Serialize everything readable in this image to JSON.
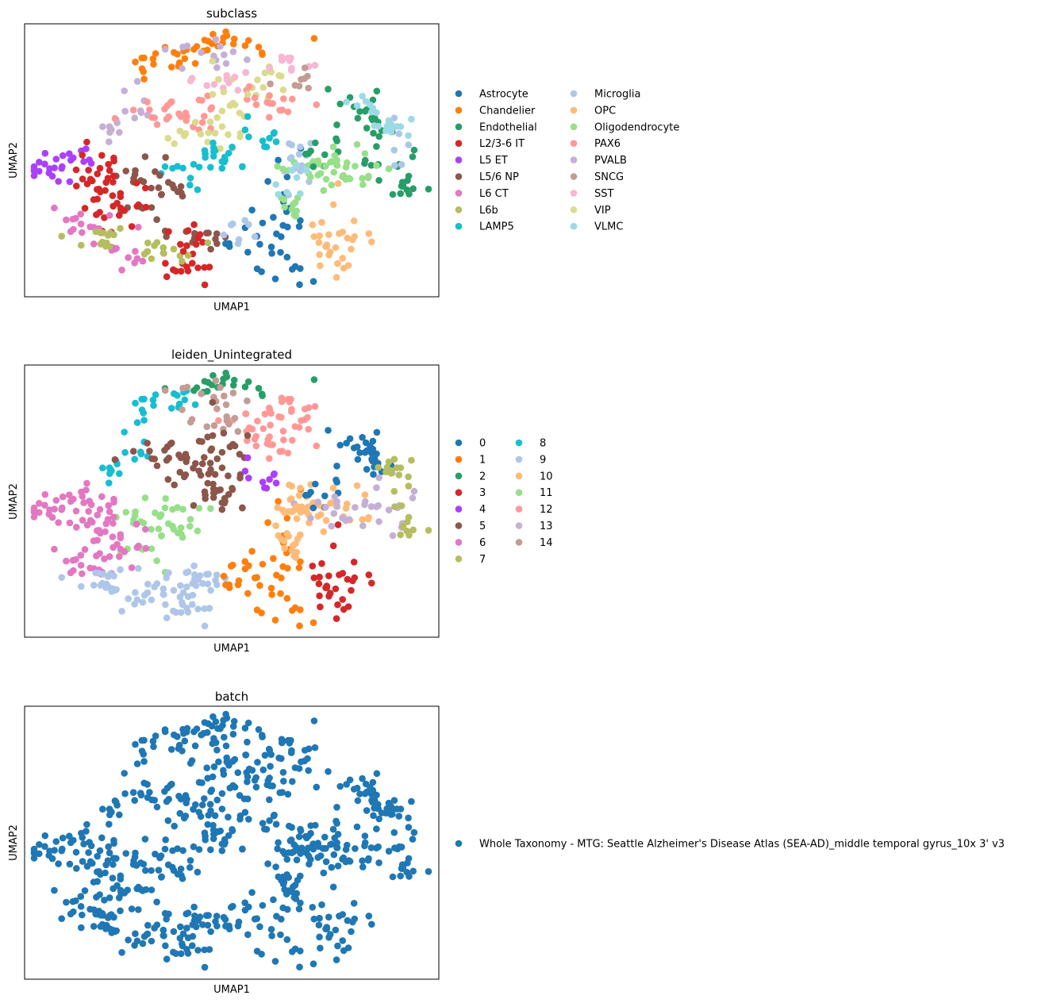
{
  "chart_data": [
    {
      "type": "scatter",
      "title": "subclass",
      "xlabel": "UMAP1",
      "ylabel": "UMAP2",
      "xticks": false,
      "yticks": false,
      "legend_placement": "right, two columns",
      "legend": [
        {
          "label": "Astrocyte",
          "color": "#1f77b4"
        },
        {
          "label": "Chandelier",
          "color": "#ff7f0e"
        },
        {
          "label": "Endothelial",
          "color": "#279e68"
        },
        {
          "label": "L2/3-6 IT",
          "color": "#d62728"
        },
        {
          "label": "L5 ET",
          "color": "#aa40fc"
        },
        {
          "label": "L5/6 NP",
          "color": "#8c564b"
        },
        {
          "label": "L6 CT",
          "color": "#e377c2"
        },
        {
          "label": "L6b",
          "color": "#b5bd61"
        },
        {
          "label": "LAMP5",
          "color": "#17becf"
        },
        {
          "label": "Microglia",
          "color": "#aec7e8"
        },
        {
          "label": "OPC",
          "color": "#ffbb78"
        },
        {
          "label": "Oligodendrocyte",
          "color": "#98df8a"
        },
        {
          "label": "PAX6",
          "color": "#ff9896"
        },
        {
          "label": "PVALB",
          "color": "#c5b0d5"
        },
        {
          "label": "SNCG",
          "color": "#c49c94"
        },
        {
          "label": "SST",
          "color": "#f7b6d2"
        },
        {
          "label": "VIP",
          "color": "#dbdb8d"
        },
        {
          "label": "VLMC",
          "color": "#9edae5"
        }
      ]
    },
    {
      "type": "scatter",
      "title": "leiden_Unintegrated",
      "xlabel": "UMAP1",
      "ylabel": "UMAP2",
      "xticks": false,
      "yticks": false,
      "legend_placement": "right, two columns",
      "legend": [
        {
          "label": "0",
          "color": "#1f77b4"
        },
        {
          "label": "1",
          "color": "#ff7f0e"
        },
        {
          "label": "2",
          "color": "#279e68"
        },
        {
          "label": "3",
          "color": "#d62728"
        },
        {
          "label": "4",
          "color": "#aa40fc"
        },
        {
          "label": "5",
          "color": "#8c564b"
        },
        {
          "label": "6",
          "color": "#e377c2"
        },
        {
          "label": "7",
          "color": "#b5bd61"
        },
        {
          "label": "8",
          "color": "#17becf"
        },
        {
          "label": "9",
          "color": "#aec7e8"
        },
        {
          "label": "10",
          "color": "#ffbb78"
        },
        {
          "label": "11",
          "color": "#98df8a"
        },
        {
          "label": "12",
          "color": "#ff9896"
        },
        {
          "label": "13",
          "color": "#c5b0d5"
        },
        {
          "label": "14",
          "color": "#c49c94"
        }
      ]
    },
    {
      "type": "scatter",
      "title": "batch",
      "xlabel": "UMAP1",
      "ylabel": "UMAP2",
      "xticks": false,
      "yticks": false,
      "legend_placement": "right, one column",
      "legend": [
        {
          "label": "Whole Taxonomy - MTG: Seattle Alzheimer's Disease Atlas (SEA-AD)_middle temporal gyrus_10x 3' v3",
          "color": "#1f77b4"
        }
      ]
    }
  ]
}
